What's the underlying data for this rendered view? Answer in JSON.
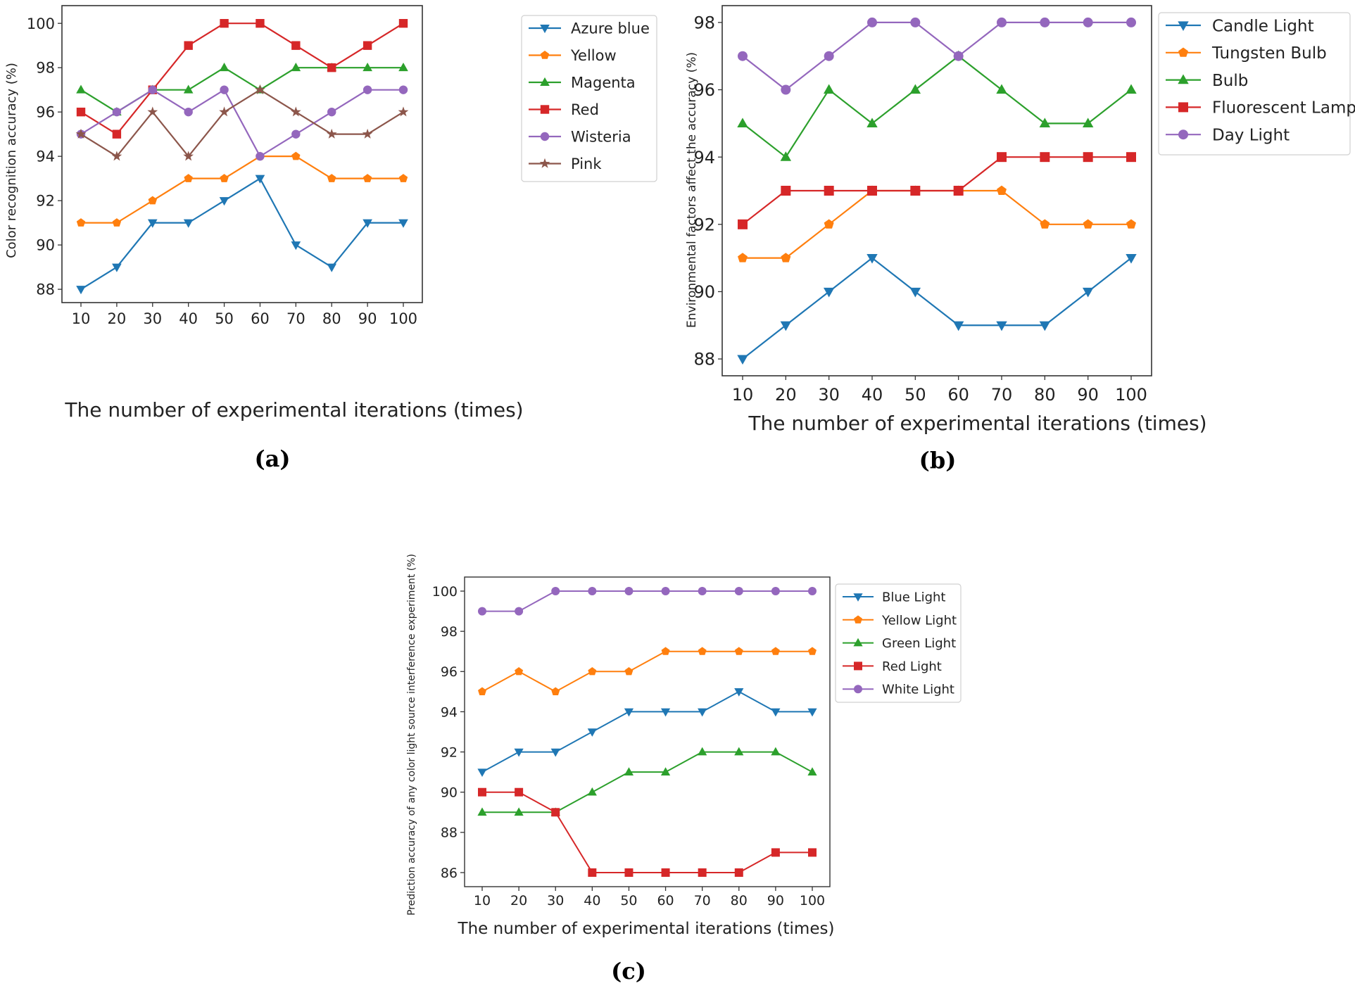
{
  "chart_data": [
    {
      "type": "line",
      "id": "a",
      "caption": "(a)",
      "xlabel": "The number of experimental iterations (times)",
      "ylabel": "Color recognition accuracy (%)",
      "x": [
        10,
        20,
        30,
        40,
        50,
        60,
        70,
        80,
        90,
        100
      ],
      "ylim": [
        87.4,
        100.8
      ],
      "yticks": [
        88,
        90,
        92,
        94,
        96,
        98,
        100
      ],
      "legend_position": "outside-right",
      "series": [
        {
          "name": "Azure blue",
          "color": "#1f77b4",
          "marker": "tri-down",
          "values": [
            88,
            89,
            91,
            91,
            92,
            93,
            90,
            89,
            91,
            91
          ]
        },
        {
          "name": "Yellow",
          "color": "#ff7f0e",
          "marker": "pentagon",
          "values": [
            91,
            91,
            92,
            93,
            93,
            94,
            94,
            93,
            93,
            93
          ]
        },
        {
          "name": "Magenta",
          "color": "#2ca02c",
          "marker": "tri-up",
          "values": [
            97,
            96,
            97,
            97,
            98,
            97,
            98,
            98,
            98,
            98
          ]
        },
        {
          "name": "Red",
          "color": "#d62728",
          "marker": "square",
          "values": [
            96,
            95,
            97,
            99,
            100,
            100,
            99,
            98,
            99,
            100
          ]
        },
        {
          "name": "Wisteria",
          "color": "#9467bd",
          "marker": "circle",
          "values": [
            95,
            96,
            97,
            96,
            97,
            94,
            95,
            96,
            97,
            97
          ]
        },
        {
          "name": "Pink",
          "color": "#8c564b",
          "marker": "star",
          "values": [
            95,
            94,
            96,
            94,
            96,
            97,
            96,
            95,
            95,
            96
          ]
        }
      ]
    },
    {
      "type": "line",
      "id": "b",
      "caption": "(b)",
      "xlabel": "The number of experimental iterations (times)",
      "ylabel": "Environmental factors affect the accuracy (%)",
      "x": [
        10,
        20,
        30,
        40,
        50,
        60,
        70,
        80,
        90,
        100
      ],
      "ylim": [
        87.5,
        98.5
      ],
      "yticks": [
        88,
        90,
        92,
        94,
        96,
        98
      ],
      "legend_position": "outside-right",
      "series": [
        {
          "name": "Candle Light",
          "color": "#1f77b4",
          "marker": "tri-down",
          "values": [
            88,
            89,
            90,
            91,
            90,
            89,
            89,
            89,
            90,
            91
          ]
        },
        {
          "name": "Tungsten Bulb",
          "color": "#ff7f0e",
          "marker": "pentagon",
          "values": [
            91,
            91,
            92,
            93,
            93,
            93,
            93,
            92,
            92,
            92
          ]
        },
        {
          "name": "Bulb",
          "color": "#2ca02c",
          "marker": "tri-up",
          "values": [
            95,
            94,
            96,
            95,
            96,
            97,
            96,
            95,
            95,
            96
          ]
        },
        {
          "name": "Fluorescent Lamp",
          "color": "#d62728",
          "marker": "square",
          "values": [
            92,
            93,
            93,
            93,
            93,
            93,
            94,
            94,
            94,
            94
          ]
        },
        {
          "name": "Day Light",
          "color": "#9467bd",
          "marker": "circle",
          "values": [
            97,
            96,
            97,
            98,
            98,
            97,
            98,
            98,
            98,
            98
          ]
        }
      ]
    },
    {
      "type": "line",
      "id": "c",
      "caption": "(c)",
      "xlabel": "The number of experimental iterations (times)",
      "ylabel": "Prediction accuracy of any color light source interference experiment (%)",
      "x": [
        10,
        20,
        30,
        40,
        50,
        60,
        70,
        80,
        90,
        100
      ],
      "ylim": [
        85.3,
        100.7
      ],
      "yticks": [
        86,
        88,
        90,
        92,
        94,
        96,
        98,
        100
      ],
      "legend_position": "outside-right",
      "series": [
        {
          "name": "Blue Light",
          "color": "#1f77b4",
          "marker": "tri-down",
          "values": [
            91,
            92,
            92,
            93,
            94,
            94,
            94,
            95,
            94,
            94
          ]
        },
        {
          "name": "Yellow Light",
          "color": "#ff7f0e",
          "marker": "pentagon",
          "values": [
            95,
            96,
            95,
            96,
            96,
            97,
            97,
            97,
            97,
            97
          ]
        },
        {
          "name": "Green Light",
          "color": "#2ca02c",
          "marker": "tri-up",
          "values": [
            89,
            89,
            89,
            90,
            91,
            91,
            92,
            92,
            92,
            91
          ]
        },
        {
          "name": "Red Light",
          "color": "#d62728",
          "marker": "square",
          "values": [
            90,
            90,
            89,
            86,
            86,
            86,
            86,
            86,
            87,
            87
          ]
        },
        {
          "name": "White Light",
          "color": "#9467bd",
          "marker": "circle",
          "values": [
            99,
            99,
            100,
            100,
            100,
            100,
            100,
            100,
            100,
            100
          ]
        }
      ]
    }
  ]
}
